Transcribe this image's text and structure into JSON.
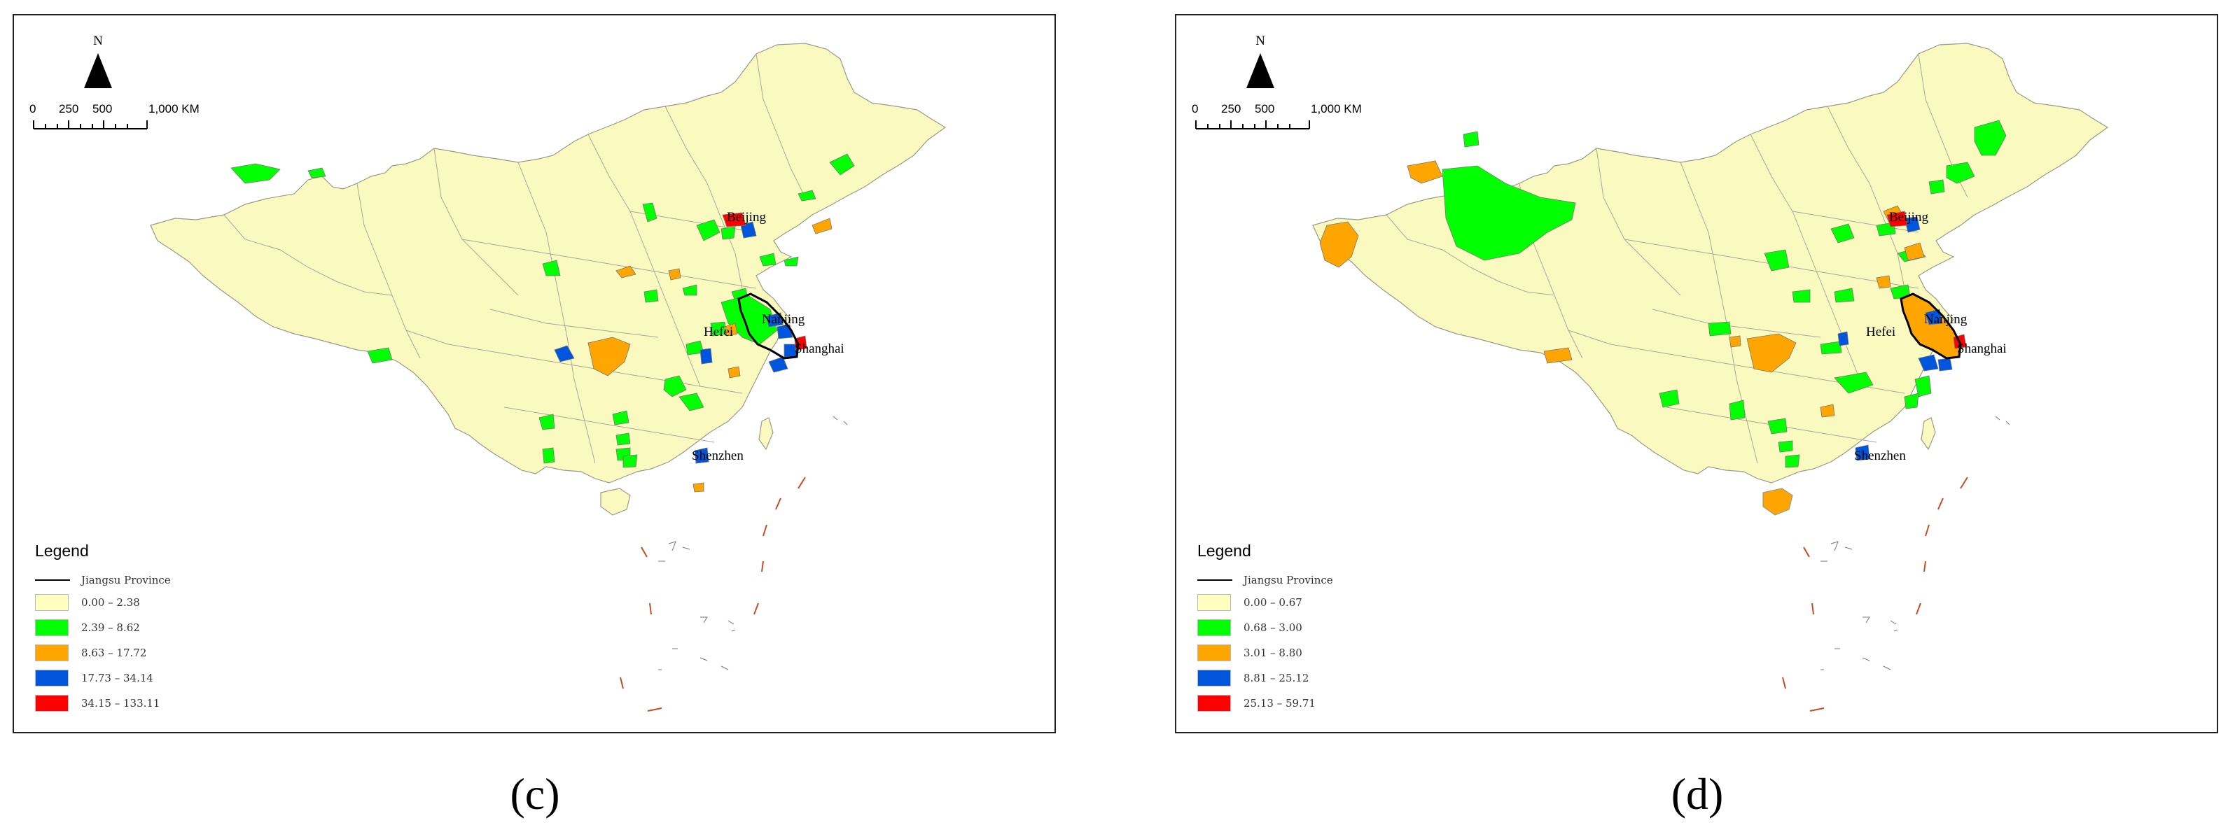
{
  "panels": [
    {
      "id": "c",
      "caption": "(c)",
      "north_label": "N",
      "scale_ticks": [
        "0",
        "250",
        "500",
        "1,000 KM"
      ],
      "legend": {
        "title": "Legend",
        "boundary_label": "Jiangsu Province",
        "classes": [
          {
            "range": "0.00 – 2.38",
            "color": "#ffffc0"
          },
          {
            "range": "2.39 – 8.62",
            "color": "#00ff00"
          },
          {
            "range": "8.63 – 17.72",
            "color": "#ffa500"
          },
          {
            "range": "17.73 – 34.14",
            "color": "#0055dd"
          },
          {
            "range": "34.15 – 133.11",
            "color": "#ff0000"
          }
        ]
      },
      "cities": [
        "Beijing",
        "Hefei",
        "Nanjing",
        "Shanghai",
        "Shenzhen"
      ]
    },
    {
      "id": "d",
      "caption": "(d)",
      "north_label": "N",
      "scale_ticks": [
        "0",
        "250",
        "500",
        "1,000 KM"
      ],
      "legend": {
        "title": "Legend",
        "boundary_label": "Jiangsu Province",
        "classes": [
          {
            "range": "0.00 – 0.67",
            "color": "#ffffc0"
          },
          {
            "range": "0.68 – 3.00",
            "color": "#00ff00"
          },
          {
            "range": "3.01 – 8.80",
            "color": "#ffa500"
          },
          {
            "range": "8.81 – 25.12",
            "color": "#0055dd"
          },
          {
            "range": "25.13 – 59.71",
            "color": "#ff0000"
          }
        ]
      },
      "cities": [
        "Beijing",
        "Hefei",
        "Nanjing",
        "Shanghai",
        "Shenzhen"
      ]
    }
  ]
}
